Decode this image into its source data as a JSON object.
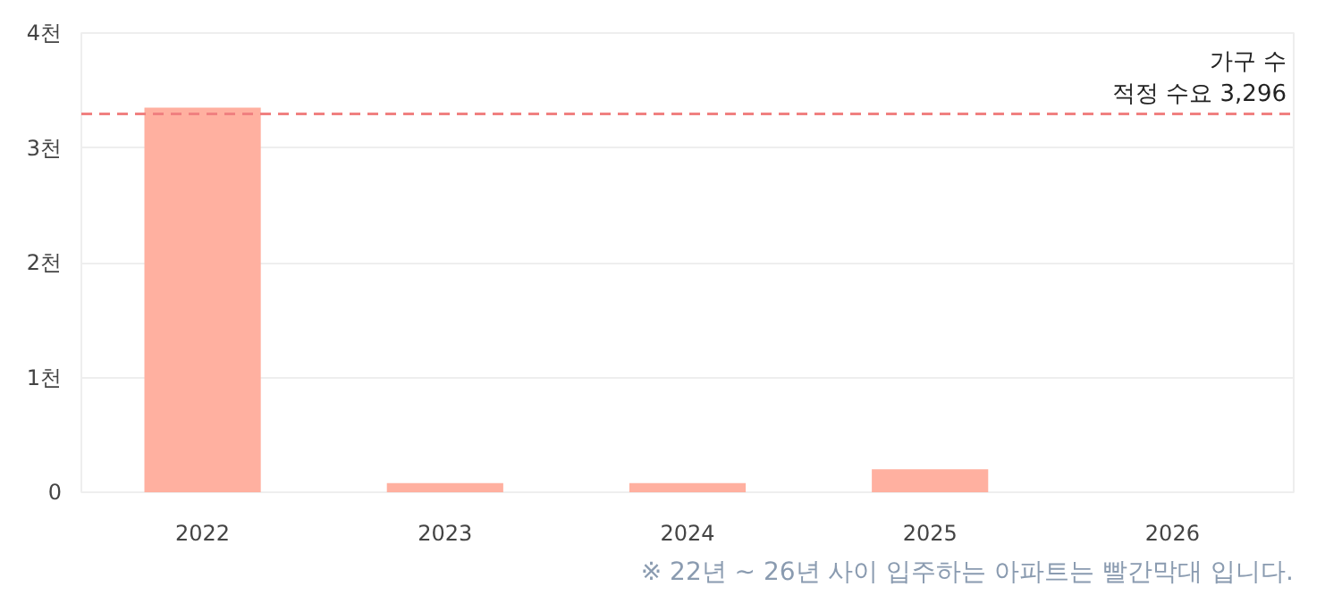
{
  "chart_data": {
    "type": "bar",
    "categories": [
      "2022",
      "2023",
      "2024",
      "2025",
      "2026"
    ],
    "values": [
      3.35,
      0.08,
      0.08,
      0.2,
      0
    ],
    "color": "#ffb0a0",
    "ylim": [
      0,
      4
    ],
    "yticks": [
      0,
      {
        "value": 1,
        "label": "1천"
      },
      {
        "value": 2,
        "label": "2천"
      },
      {
        "value": 3,
        "label": "3천"
      },
      {
        "value": 4,
        "label": "4천"
      }
    ],
    "grid": "y",
    "ref_lines": [
      {
        "axis": "y",
        "value": 3.296,
        "label": "가구 수\n적정 수요 3,296",
        "color": "#f08080",
        "line_style": "dashed"
      }
    ],
    "annotations": [
      "※ 22년 ~ 26년 사이 입주하는 아파트는 빨간막대 입니다."
    ]
  }
}
